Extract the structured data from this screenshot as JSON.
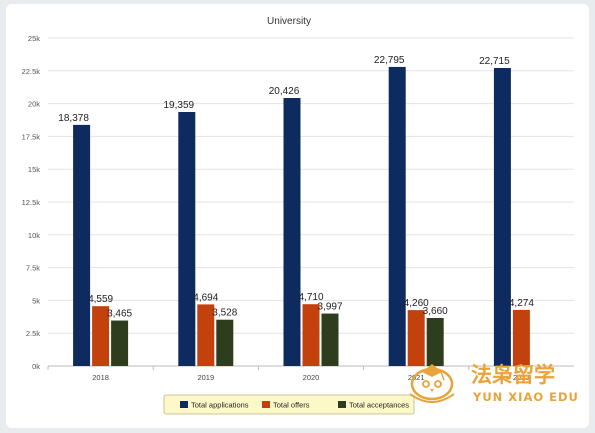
{
  "chart_data": {
    "type": "bar",
    "title": "University",
    "categories": [
      "2018",
      "2019",
      "2020",
      "2021",
      "2022"
    ],
    "series": [
      {
        "name": "Total applications",
        "color": "#0d2b5e",
        "values": [
          18378,
          19359,
          20426,
          22795,
          22715
        ]
      },
      {
        "name": "Total offers",
        "color": "#c2410c",
        "values": [
          4559,
          4694,
          4710,
          4260,
          4274
        ]
      },
      {
        "name": "Total acceptances",
        "color": "#2e3d1e",
        "values": [
          3465,
          3528,
          3997,
          3660,
          null
        ]
      }
    ],
    "data_labels": [
      [
        "18,378",
        "19,359",
        "20,426",
        "22,795",
        "22,715"
      ],
      [
        "4,559",
        "4,694",
        "4,710",
        "4,260",
        "4,274"
      ],
      [
        "3,465",
        "3,528",
        "3,997",
        "3,660",
        ""
      ]
    ],
    "yticks": [
      "0k",
      "2.5k",
      "5k",
      "7.5k",
      "10k",
      "12.5k",
      "15k",
      "17.5k",
      "20k",
      "22.5k",
      "25k"
    ],
    "ylim": [
      0,
      25000
    ],
    "xlabel": "",
    "ylabel": "",
    "grid": true,
    "legend_position": "bottom-center",
    "legend_bg": "#fdf8c8"
  },
  "watermark": {
    "cn_text": "法枭留学",
    "en_text": "YUN XIAO EDU",
    "color": "#e8a33a"
  }
}
